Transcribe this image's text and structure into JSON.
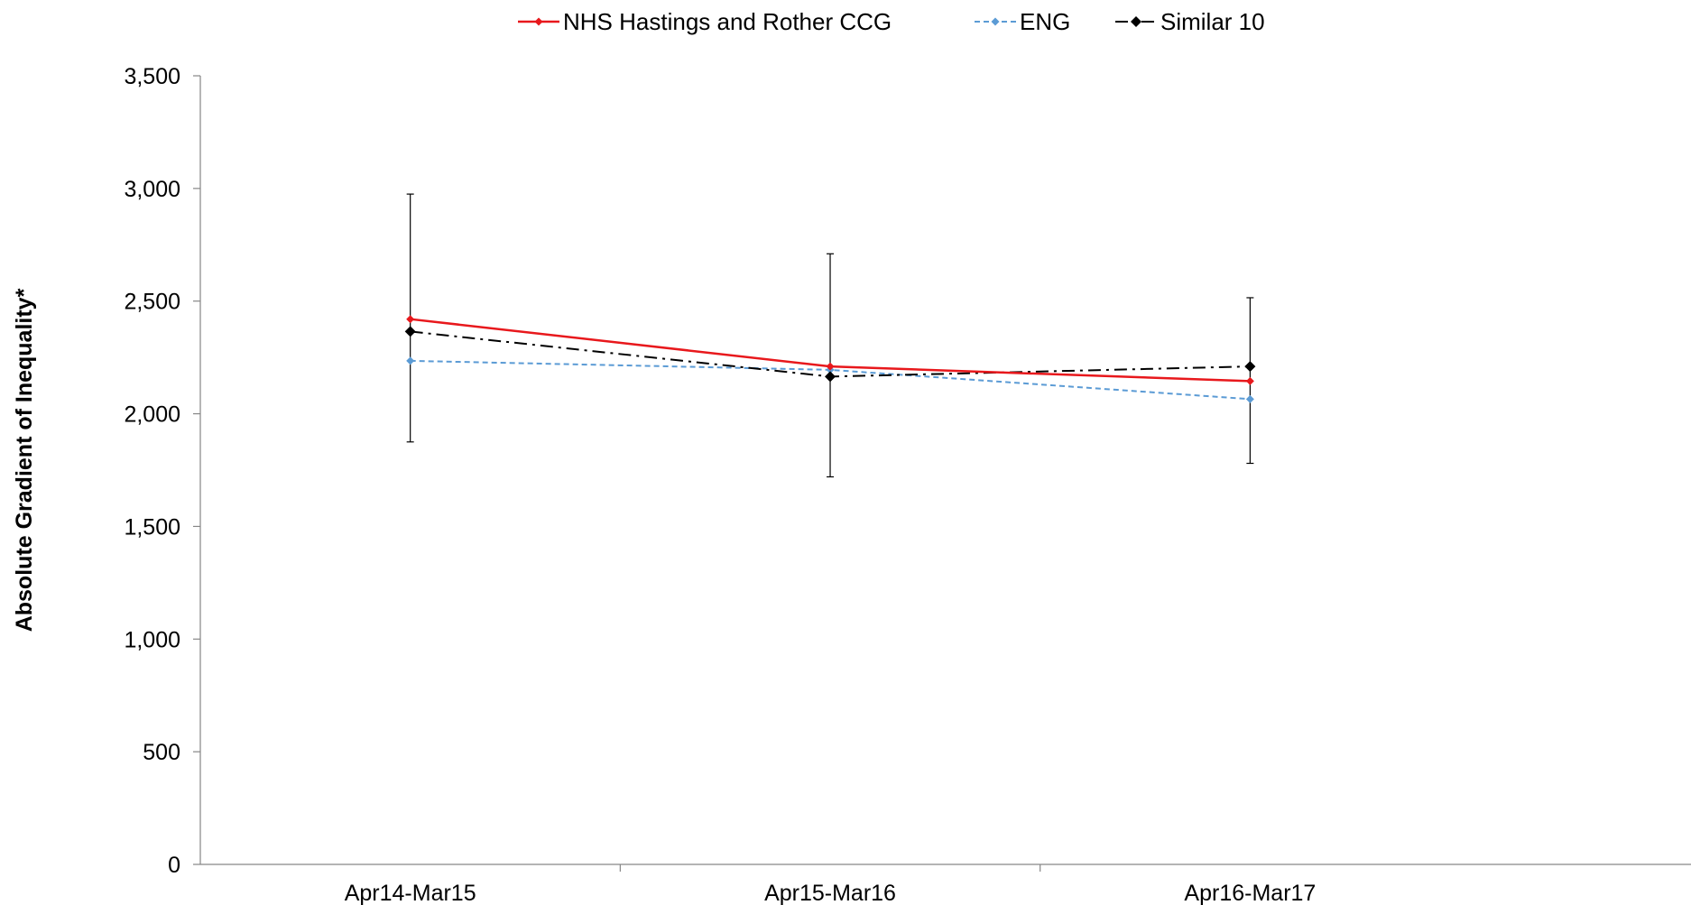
{
  "chart_data": {
    "type": "line",
    "title": "",
    "xlabel": "",
    "ylabel": "Absolute Gradient of Inequality*",
    "categories": [
      "Apr14-Mar15",
      "Apr15-Mar16",
      "Apr16-Mar17"
    ],
    "ylim": [
      0,
      3500
    ],
    "yticks": [
      0,
      500,
      1000,
      1500,
      2000,
      2500,
      3000,
      3500
    ],
    "ytick_labels": [
      "0",
      "500",
      "1,000",
      "1,500",
      "2,000",
      "2,500",
      "3,000",
      "3,500"
    ],
    "grid": false,
    "legend_position": "top",
    "series": [
      {
        "name": "NHS Hastings and Rother CCG",
        "values": [
          2420,
          2210,
          2145
        ],
        "color": "#e8181c",
        "line_style": "solid",
        "marker": "diamond",
        "error_bars": [
          [
            1875,
            2975
          ],
          [
            1720,
            2710
          ],
          [
            1780,
            2515
          ]
        ]
      },
      {
        "name": "ENG",
        "values": [
          2235,
          2195,
          2065
        ],
        "color": "#5b9bd5",
        "line_style": "dashed",
        "marker": "diamond"
      },
      {
        "name": "Similar 10",
        "values": [
          2365,
          2165,
          2210
        ],
        "color": "#000000",
        "line_style": "dash-dot",
        "marker": "diamond"
      }
    ]
  }
}
